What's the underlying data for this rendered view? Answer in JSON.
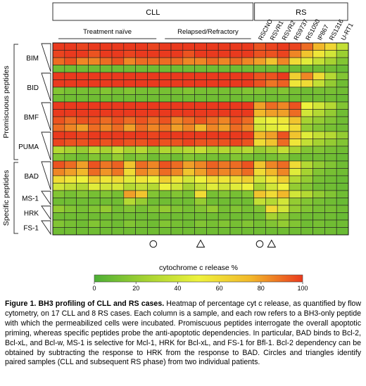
{
  "chart_data": {
    "type": "heatmap",
    "title": "",
    "groups": [
      {
        "label": "CLL",
        "columns": 17
      },
      {
        "label": "RS",
        "columns": 8
      }
    ],
    "cll_subgroups": [
      {
        "label": "Treatment naïve",
        "columns": 9
      },
      {
        "label": "Relapsed/Refractory",
        "columns": 8
      }
    ],
    "columns": [
      "",
      "",
      "",
      "",
      "",
      "",
      "",
      "",
      "",
      "",
      "",
      "",
      "",
      "",
      "",
      "",
      "",
      "RSCNO",
      "RSVR1",
      "RSVR2",
      "RS9737",
      "RS1050",
      "IP867",
      "RS1316",
      "U-RT1"
    ],
    "row_groups": [
      {
        "label": "BIM",
        "rows": 4
      },
      {
        "label": "BID",
        "rows": 4
      },
      {
        "label": "BMF",
        "rows": 4
      },
      {
        "label": "PUMA",
        "rows": 4
      },
      {
        "label": "BAD",
        "rows": 4
      },
      {
        "label": "MS-1",
        "rows": 2
      },
      {
        "label": "HRK",
        "rows": 2
      },
      {
        "label": "FS-1",
        "rows": 2
      }
    ],
    "row_sections": [
      {
        "label": "Promiscuous peptides",
        "row_groups": [
          "BIM",
          "BID",
          "BMF",
          "PUMA"
        ]
      },
      {
        "label": "Specific peptides",
        "row_groups": [
          "BAD",
          "MS-1",
          "HRK",
          "FS-1"
        ]
      }
    ],
    "values": [
      [
        100,
        100,
        98,
        100,
        100,
        100,
        100,
        100,
        98,
        100,
        100,
        100,
        100,
        100,
        100,
        100,
        100,
        95,
        98,
        100,
        98,
        90,
        75,
        62,
        35
      ],
      [
        98,
        100,
        100,
        95,
        100,
        100,
        98,
        100,
        100,
        100,
        100,
        95,
        100,
        100,
        100,
        100,
        100,
        95,
        95,
        98,
        85,
        70,
        55,
        40,
        22
      ],
      [
        90,
        95,
        85,
        85,
        90,
        95,
        85,
        90,
        90,
        90,
        90,
        85,
        85,
        90,
        85,
        90,
        85,
        80,
        70,
        85,
        60,
        45,
        35,
        25,
        15
      ],
      [
        10,
        10,
        10,
        10,
        10,
        10,
        10,
        10,
        10,
        10,
        10,
        10,
        10,
        10,
        10,
        10,
        10,
        10,
        10,
        10,
        10,
        10,
        10,
        10,
        8
      ],
      [
        100,
        100,
        100,
        100,
        100,
        100,
        100,
        100,
        100,
        100,
        100,
        100,
        100,
        100,
        100,
        100,
        100,
        95,
        95,
        100,
        65,
        85,
        60,
        30,
        15
      ],
      [
        100,
        100,
        100,
        100,
        100,
        100,
        100,
        100,
        100,
        100,
        100,
        100,
        100,
        100,
        100,
        100,
        100,
        95,
        88,
        92,
        55,
        60,
        35,
        20,
        10
      ],
      [
        15,
        12,
        12,
        12,
        15,
        12,
        15,
        12,
        12,
        12,
        12,
        15,
        12,
        12,
        12,
        12,
        15,
        15,
        12,
        15,
        12,
        10,
        12,
        12,
        10
      ],
      [
        10,
        10,
        10,
        10,
        10,
        10,
        10,
        10,
        10,
        10,
        10,
        10,
        10,
        10,
        10,
        10,
        10,
        10,
        10,
        10,
        10,
        10,
        10,
        10,
        8
      ],
      [
        100,
        100,
        100,
        100,
        100,
        100,
        100,
        100,
        100,
        100,
        100,
        100,
        100,
        100,
        100,
        100,
        100,
        80,
        90,
        85,
        95,
        50,
        40,
        30,
        15
      ],
      [
        100,
        100,
        100,
        100,
        100,
        100,
        100,
        100,
        100,
        100,
        100,
        100,
        100,
        100,
        100,
        100,
        100,
        75,
        80,
        80,
        90,
        40,
        30,
        20,
        10
      ],
      [
        95,
        90,
        95,
        95,
        90,
        95,
        90,
        95,
        90,
        95,
        85,
        90,
        95,
        90,
        85,
        95,
        90,
        45,
        50,
        55,
        70,
        25,
        20,
        15,
        10
      ],
      [
        90,
        85,
        80,
        90,
        85,
        90,
        80,
        90,
        85,
        88,
        80,
        85,
        75,
        85,
        80,
        90,
        85,
        40,
        45,
        50,
        60,
        20,
        15,
        12,
        10
      ],
      [
        100,
        100,
        98,
        100,
        100,
        100,
        100,
        100,
        98,
        100,
        100,
        100,
        100,
        100,
        100,
        100,
        100,
        75,
        80,
        95,
        70,
        45,
        35,
        30,
        20
      ],
      [
        98,
        95,
        95,
        98,
        95,
        98,
        95,
        95,
        98,
        95,
        95,
        98,
        95,
        95,
        95,
        98,
        95,
        60,
        70,
        90,
        55,
        35,
        25,
        20,
        15
      ],
      [
        30,
        25,
        20,
        30,
        25,
        35,
        25,
        30,
        20,
        28,
        25,
        30,
        35,
        25,
        30,
        25,
        30,
        20,
        25,
        35,
        25,
        15,
        15,
        12,
        10
      ],
      [
        15,
        12,
        10,
        15,
        12,
        20,
        12,
        15,
        10,
        12,
        10,
        15,
        12,
        12,
        10,
        15,
        12,
        10,
        12,
        15,
        10,
        10,
        10,
        10,
        8
      ],
      [
        95,
        90,
        80,
        95,
        88,
        92,
        70,
        90,
        85,
        95,
        90,
        80,
        85,
        92,
        88,
        90,
        95,
        70,
        85,
        90,
        60,
        30,
        20,
        15,
        10
      ],
      [
        85,
        80,
        75,
        90,
        82,
        88,
        60,
        85,
        80,
        90,
        85,
        70,
        80,
        88,
        85,
        85,
        90,
        60,
        75,
        85,
        45,
        25,
        15,
        12,
        10
      ],
      [
        60,
        55,
        50,
        65,
        55,
        60,
        45,
        55,
        50,
        65,
        55,
        40,
        50,
        60,
        55,
        60,
        65,
        40,
        55,
        65,
        30,
        20,
        12,
        10,
        8
      ],
      [
        40,
        35,
        30,
        45,
        40,
        42,
        30,
        35,
        30,
        50,
        40,
        25,
        35,
        45,
        40,
        45,
        50,
        25,
        40,
        50,
        20,
        15,
        10,
        10,
        8
      ],
      [
        15,
        12,
        15,
        12,
        15,
        12,
        80,
        70,
        15,
        12,
        15,
        12,
        60,
        12,
        15,
        12,
        15,
        70,
        60,
        75,
        40,
        30,
        20,
        15,
        10
      ],
      [
        10,
        10,
        10,
        10,
        10,
        10,
        30,
        20,
        10,
        10,
        10,
        10,
        20,
        10,
        10,
        10,
        10,
        35,
        30,
        40,
        20,
        15,
        12,
        10,
        8
      ],
      [
        20,
        15,
        12,
        15,
        20,
        12,
        15,
        12,
        15,
        20,
        15,
        12,
        15,
        20,
        12,
        15,
        12,
        15,
        60,
        40,
        20,
        15,
        12,
        12,
        10
      ],
      [
        10,
        10,
        10,
        10,
        10,
        10,
        10,
        10,
        10,
        10,
        10,
        10,
        10,
        10,
        10,
        10,
        10,
        10,
        25,
        20,
        12,
        10,
        10,
        10,
        8
      ],
      [
        15,
        12,
        10,
        15,
        12,
        10,
        15,
        12,
        10,
        15,
        12,
        10,
        15,
        12,
        15,
        12,
        15,
        12,
        15,
        20,
        15,
        10,
        12,
        10,
        10
      ],
      [
        10,
        10,
        10,
        10,
        10,
        10,
        10,
        10,
        10,
        10,
        10,
        10,
        10,
        10,
        10,
        10,
        10,
        10,
        10,
        10,
        10,
        10,
        10,
        10,
        8
      ]
    ],
    "markers": [
      {
        "symbol": "circle",
        "column": 8
      },
      {
        "symbol": "triangle",
        "column": 12
      },
      {
        "symbol": "circle",
        "column": 17
      },
      {
        "symbol": "triangle",
        "column": 18
      }
    ],
    "colorbar": {
      "label": "cytochrome c release %",
      "min": 0,
      "max": 100,
      "ticks": [
        0,
        20,
        40,
        60,
        80,
        100
      ],
      "colors": [
        "#4caf35",
        "#a6d331",
        "#eef23c",
        "#f2b82a",
        "#ea3a1e"
      ]
    }
  },
  "caption": {
    "lead": "Figure 1. BH3 profiling of CLL and RS cases.",
    "text": "Heatmap of percentage cyt c release, as quantified by flow cytometry, on 17 CLL and 8 RS cases. Each column is a sample, and each row refers to a BH3-only peptide with which the permeabilized cells were incubated. Promiscuous peptides interrogate the overall apoptotic priming, whereas specific peptides probe the anti-apoptotic dependencies. In particular, BAD binds to Bcl-2, Bcl-xL, and Bcl-w, MS-1 is selective for Mcl-1, HRK for Bcl-xL, and FS-1 for Bfl-1. Bcl-2 dependency can be obtained by subtracting the response to HRK from the response to BAD. Circles and triangles identify paired samples (CLL and subsequent RS phase) from two individual patients."
  }
}
